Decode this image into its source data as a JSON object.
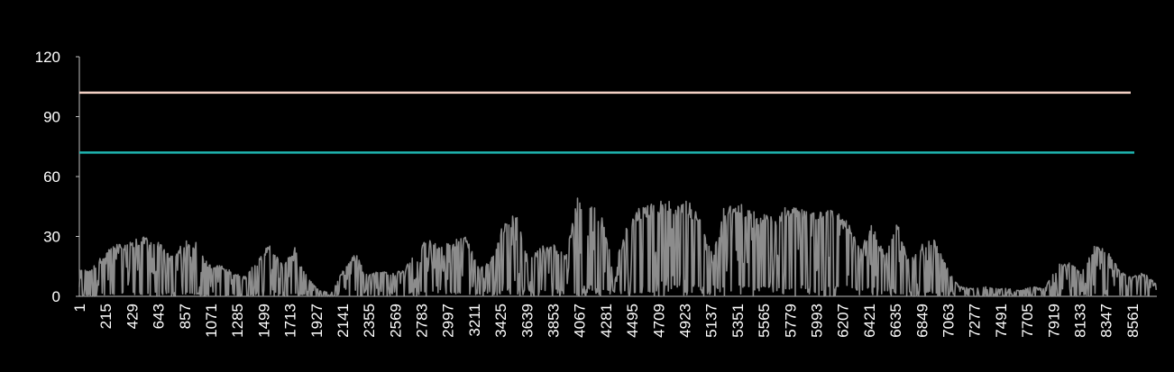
{
  "chart_data": {
    "type": "line",
    "title": "",
    "xlabel": "",
    "ylabel": "",
    "ylim": [
      0,
      120
    ],
    "y_ticks": [
      0,
      30,
      60,
      90,
      120
    ],
    "x_range": [
      1,
      8760
    ],
    "x_tick_labels": [
      "1",
      "215",
      "429",
      "643",
      "857",
      "1071",
      "1285",
      "1499",
      "1713",
      "1927",
      "2141",
      "2355",
      "2569",
      "2783",
      "2997",
      "3211",
      "3425",
      "3639",
      "3853",
      "4067",
      "4281",
      "4495",
      "4709",
      "4923",
      "5137",
      "5351",
      "5565",
      "5779",
      "5993",
      "6207",
      "6421",
      "6635",
      "6849",
      "7063",
      "7277",
      "7491",
      "7705",
      "7919",
      "8133",
      "8347",
      "8561"
    ],
    "grid": false,
    "legend": "none",
    "series": [
      {
        "values_constant": 102,
        "color": "#f2d0c4"
      },
      {
        "values_constant": 72,
        "color": "#1fb5b0"
      },
      {
        "color": "#8c8c8c",
        "envelope": {
          "x": [
            1,
            100,
            250,
            350,
            450,
            550,
            650,
            750,
            850,
            950,
            1050,
            1150,
            1250,
            1350,
            1450,
            1550,
            1650,
            1750,
            1850,
            1950,
            2050,
            2150,
            2250,
            2350,
            2450,
            2550,
            2650,
            2750,
            2850,
            2950,
            3050,
            3150,
            3250,
            3350,
            3450,
            3550,
            3650,
            3750,
            3850,
            3950,
            4050,
            4150,
            4250,
            4350,
            4450,
            4550,
            4650,
            4750,
            4850,
            4950,
            5050,
            5150,
            5250,
            5350,
            5450,
            5550,
            5650,
            5750,
            5850,
            5950,
            6050,
            6150,
            6250,
            6350,
            6450,
            6550,
            6650,
            6750,
            6850,
            6950,
            7050,
            7150,
            7250,
            7350,
            7450,
            7550,
            7650,
            7750,
            7850,
            7950,
            8050,
            8150,
            8250,
            8350,
            8450,
            8550,
            8650,
            8760
          ],
          "max": [
            13,
            14,
            25,
            27,
            29,
            30,
            27,
            20,
            28,
            27,
            16,
            16,
            12,
            10,
            20,
            26,
            16,
            25,
            10,
            3,
            2,
            14,
            22,
            11,
            13,
            12,
            14,
            26,
            28,
            25,
            29,
            30,
            14,
            19,
            37,
            42,
            19,
            25,
            27,
            20,
            50,
            48,
            40,
            15,
            35,
            45,
            47,
            48,
            47,
            48,
            40,
            20,
            47,
            47,
            45,
            42,
            40,
            45,
            45,
            44,
            45,
            43,
            37,
            24,
            37,
            20,
            37,
            18,
            26,
            29,
            15,
            5,
            4,
            5,
            4,
            4,
            3,
            5,
            4,
            16,
            17,
            12,
            25,
            24,
            14,
            10,
            12,
            6
          ],
          "min": [
            1,
            1,
            2,
            2,
            3,
            3,
            2,
            2,
            3,
            2,
            1,
            1,
            1,
            1,
            2,
            3,
            2,
            2,
            1,
            0,
            0,
            1,
            2,
            2,
            2,
            2,
            2,
            3,
            4,
            4,
            4,
            4,
            3,
            3,
            4,
            4,
            3,
            3,
            4,
            4,
            5,
            5,
            5,
            3,
            5,
            6,
            6,
            6,
            6,
            6,
            6,
            3,
            6,
            6,
            6,
            6,
            6,
            6,
            6,
            6,
            6,
            6,
            5,
            4,
            5,
            3,
            5,
            3,
            3,
            3,
            2,
            1,
            0,
            0,
            0,
            0,
            0,
            0,
            0,
            1,
            1,
            1,
            2,
            2,
            1,
            1,
            1,
            0
          ]
        }
      }
    ]
  }
}
